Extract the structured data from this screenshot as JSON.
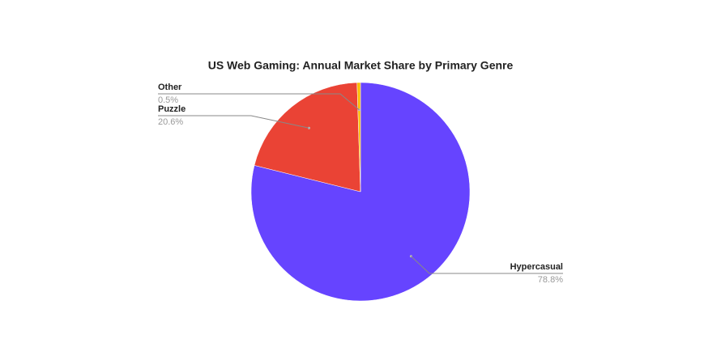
{
  "chart_data": {
    "type": "pie",
    "title": "US Web Gaming: Annual Market Share by Primary Genre",
    "categories": [
      "Hypercasual",
      "Puzzle",
      "Other"
    ],
    "values": [
      78.8,
      20.6,
      0.5
    ],
    "value_labels": [
      "78.8%",
      "20.6%",
      "0.5%"
    ],
    "colors": [
      "#6644ff",
      "#ea4335",
      "#fbbc04"
    ]
  }
}
